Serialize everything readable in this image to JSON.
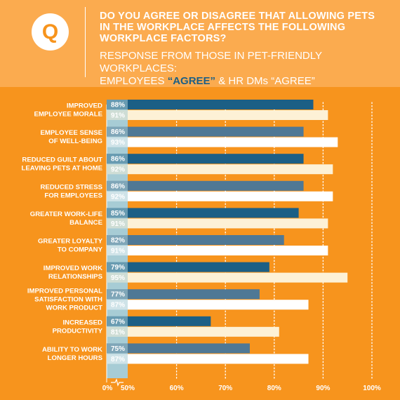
{
  "header": {
    "badge_letter": "Q",
    "question": "DO YOU AGREE OR DISAGREE THAT ALLOWING PETS IN THE WORKPLACE AFFECTS THE FOLLOWING WORKPLACE FACTORS?",
    "response_line1": "RESPONSE FROM THOSE IN PET-FRIENDLY WORKPLACES:",
    "response_prefix": "EMPLOYEES ",
    "response_employees": "“AGREE”",
    "response_suffix": " & HR DMs “AGREE”"
  },
  "colors": {
    "background": "#F7941D",
    "header_background": "#FBAB4F",
    "employees_bar": "#1C5F85",
    "employees_bar_alt": "#4F7895",
    "hr_bar": "#FDF1D6",
    "hr_bar_alt": "#FFFFFF",
    "axis_band": "#A7CCD5"
  },
  "chart_data": {
    "type": "bar",
    "orientation": "horizontal",
    "categories": [
      [
        "IMPROVED",
        "EMPLOYEE MORALE"
      ],
      [
        "EMPLOYEE SENSE",
        "OF WELL-BEING"
      ],
      [
        "REDUCED GUILT ABOUT",
        "LEAVING PETS AT HOME"
      ],
      [
        "REDUCED STRESS",
        "FOR EMPLOYEES"
      ],
      [
        "GREATER WORK-LIFE",
        "BALANCE"
      ],
      [
        "GREATER LOYALTY",
        "TO COMPANY"
      ],
      [
        "IMPROVED WORK",
        "RELATIONSHIPS"
      ],
      [
        "IMPROVED PERSONAL",
        "SATISFACTION WITH",
        "WORK PRODUCT"
      ],
      [
        "INCREASED",
        "PRODUCTIVITY"
      ],
      [
        "ABILITY TO WORK",
        "LONGER HOURS"
      ]
    ],
    "series": [
      {
        "values": [
          88,
          86,
          86,
          86,
          85,
          82,
          79,
          77,
          67,
          75
        ]
      },
      {
        "values": [
          91,
          93,
          92,
          92,
          91,
          91,
          95,
          87,
          81,
          87
        ]
      }
    ],
    "value_labels": [
      [
        "88%",
        "86%",
        "86%",
        "86%",
        "85%",
        "82%",
        "79%",
        "77%",
        "67%",
        "75%"
      ],
      [
        "91%",
        "93%",
        "92%",
        "92%",
        "91%",
        "91%",
        "95%",
        "87%",
        "81%",
        "87%"
      ]
    ],
    "x_ticks": [
      0,
      50,
      60,
      70,
      80,
      90,
      100
    ],
    "x_tick_labels": [
      "0%",
      "50%",
      "60%",
      "70%",
      "80%",
      "90%",
      "100%"
    ],
    "x_axis_break": true,
    "xlim": [
      50,
      100
    ],
    "grid": "vertical dotted"
  }
}
